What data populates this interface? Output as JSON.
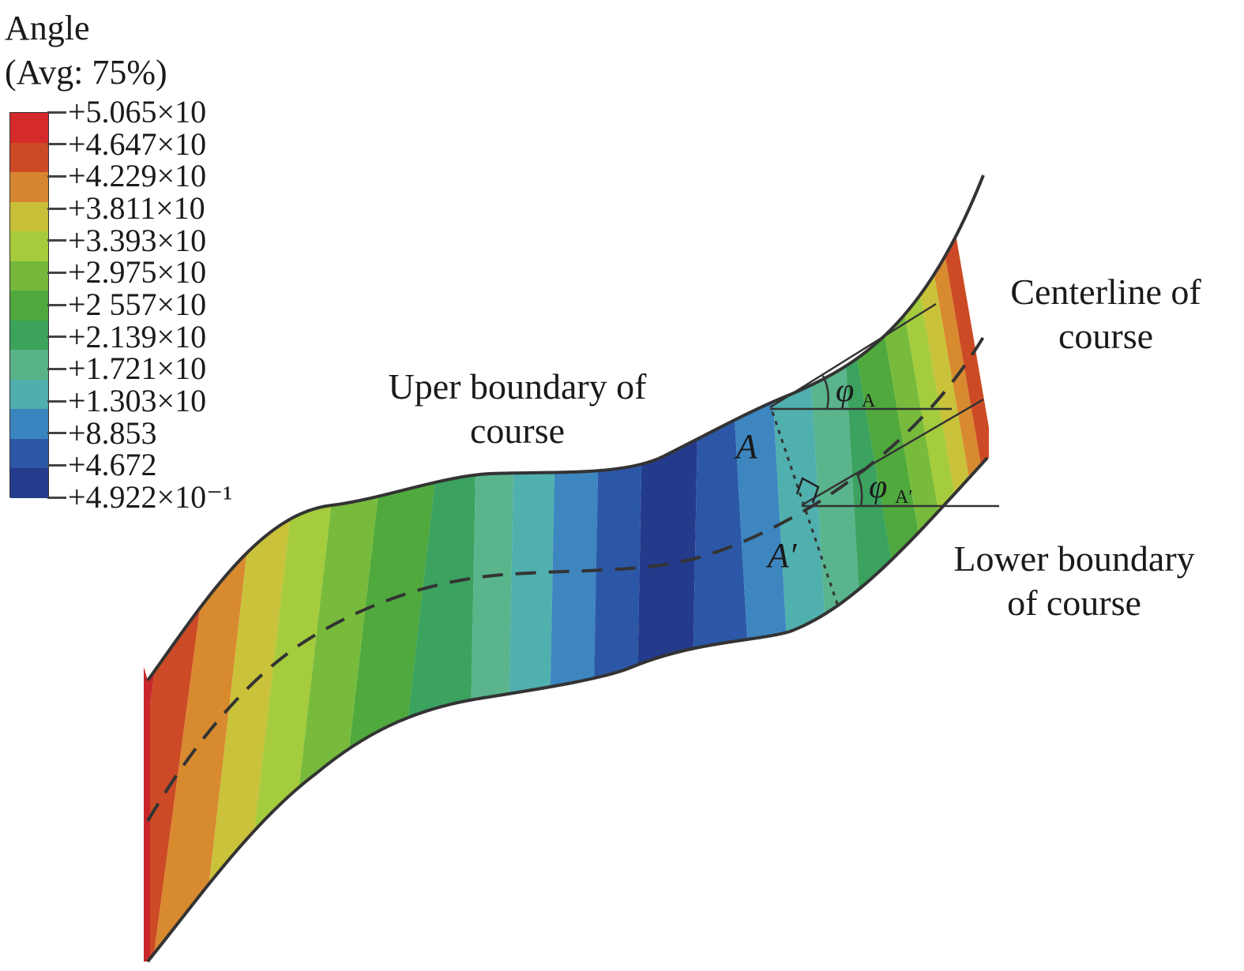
{
  "legend": {
    "title_line1": "Angle",
    "title_line2": "(Avg: 75%)",
    "ticks": [
      "+5.065×10",
      "+4.647×10",
      "+4.229×10",
      "+3.811×10",
      "+3.393×10",
      "+2.975×10",
      "+2 557×10",
      "+2.139×10",
      "+1.721×10",
      "+1.303×10",
      "+8.853",
      "+4.672",
      "+4.922×10⁻¹"
    ],
    "colors": [
      "#d42a2a",
      "#cc4a25",
      "#d7862f",
      "#c9c03a",
      "#a6cc3c",
      "#76b83b",
      "#4fa93d",
      "#3ba35a",
      "#58b386",
      "#4fafad",
      "#3a84c0",
      "#2d58a8",
      "#253c8d"
    ]
  },
  "labels": {
    "upper_boundary_line1": "Uper boundary of",
    "upper_boundary_line2": "course",
    "centerline_line1": "Centerline of",
    "centerline_line2": "course",
    "lower_boundary_line1": "Lower boundary",
    "lower_boundary_line2": "of course",
    "point_a": "A",
    "point_a_prime": "A′",
    "phi_symbol": "φ",
    "phi_a_sub": "A",
    "phi_a_prime_sub": "A′"
  },
  "band_colors": {
    "red": "#c8262b",
    "red_orange": "#cc4a25",
    "orange": "#d88a2f",
    "yellow": "#c9c23a",
    "yellow_green": "#a5cc3c",
    "light_green": "#78bb3c",
    "green": "#4fa93d",
    "teal_green": "#3ba25f",
    "sea_green": "#5ab48c",
    "teal": "#50b0ae",
    "light_blue": "#3d86c0",
    "blue": "#2c57a6",
    "dark_blue": "#243b8c"
  }
}
